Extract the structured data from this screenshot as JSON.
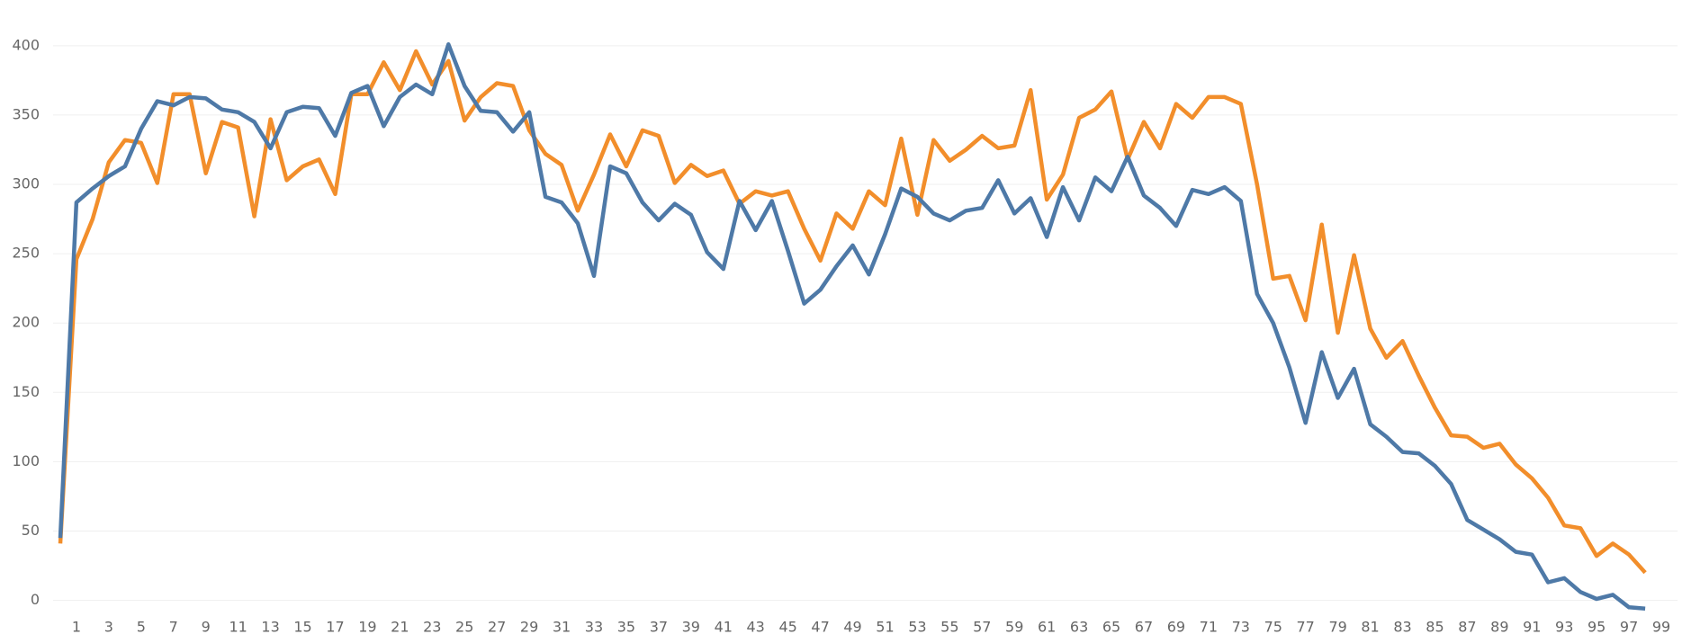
{
  "chart_data": {
    "type": "line",
    "x": [
      0,
      1,
      2,
      3,
      4,
      5,
      6,
      7,
      8,
      9,
      10,
      11,
      12,
      13,
      14,
      15,
      16,
      17,
      18,
      19,
      20,
      21,
      22,
      23,
      24,
      25,
      26,
      27,
      28,
      29,
      30,
      31,
      32,
      33,
      34,
      35,
      36,
      37,
      38,
      39,
      40,
      41,
      42,
      43,
      44,
      45,
      46,
      47,
      48,
      49,
      50,
      51,
      52,
      53,
      54,
      55,
      56,
      57,
      58,
      59,
      60,
      61,
      62,
      63,
      64,
      65,
      66,
      67,
      68,
      69,
      70,
      71,
      72,
      73,
      74,
      75,
      76,
      77,
      78,
      79,
      80,
      81,
      82,
      83,
      84,
      85,
      86,
      87,
      88,
      89,
      90,
      91,
      92,
      93,
      94,
      95,
      96,
      97,
      98
    ],
    "series": [
      {
        "color": "#4e79a7",
        "values": [
          45,
          287,
          297,
          306,
          313,
          340,
          360,
          357,
          363,
          362,
          354,
          352,
          345,
          326,
          352,
          356,
          355,
          335,
          366,
          371,
          342,
          363,
          372,
          365,
          401,
          371,
          353,
          352,
          338,
          352,
          291,
          287,
          272,
          234,
          313,
          308,
          287,
          274,
          286,
          278,
          251,
          239,
          288,
          267,
          288,
          252,
          214,
          224,
          241,
          256,
          235,
          264,
          297,
          291,
          279,
          274,
          281,
          283,
          303,
          279,
          290,
          262,
          298,
          274,
          305,
          295,
          320,
          292,
          283,
          270,
          296,
          293,
          298,
          288,
          221,
          200,
          168,
          128,
          179,
          146,
          167,
          127,
          118,
          107,
          106,
          97,
          84,
          58,
          51,
          44,
          35,
          33,
          13,
          16,
          6,
          1,
          4,
          -5,
          -6
        ]
      },
      {
        "color": "#f28e2b",
        "values": [
          41,
          246,
          275,
          316,
          332,
          330,
          301,
          365,
          365,
          308,
          345,
          341,
          277,
          347,
          303,
          313,
          318,
          293,
          365,
          365,
          388,
          368,
          396,
          372,
          389,
          346,
          363,
          373,
          371,
          339,
          322,
          314,
          281,
          307,
          336,
          313,
          339,
          335,
          301,
          314,
          306,
          310,
          286,
          295,
          292,
          295,
          268,
          245,
          279,
          268,
          295,
          285,
          333,
          278,
          332,
          317,
          325,
          335,
          326,
          328,
          368,
          289,
          307,
          348,
          354,
          367,
          318,
          345,
          326,
          358,
          348,
          363,
          363,
          358,
          300,
          232,
          234,
          202,
          271,
          193,
          249,
          196,
          175,
          187,
          162,
          139,
          119,
          118,
          110,
          113,
          98,
          88,
          74,
          54,
          52,
          32,
          41,
          33,
          20
        ]
      }
    ],
    "xlim": [
      -1,
      100
    ],
    "xticks": [
      1,
      3,
      5,
      7,
      9,
      11,
      13,
      15,
      17,
      19,
      21,
      23,
      25,
      27,
      29,
      31,
      33,
      35,
      37,
      39,
      41,
      43,
      45,
      47,
      49,
      51,
      53,
      55,
      57,
      59,
      61,
      63,
      65,
      67,
      69,
      71,
      73,
      75,
      77,
      79,
      81,
      83,
      85,
      87,
      89,
      91,
      93,
      95,
      97,
      99
    ],
    "ylim": [
      -10,
      420
    ],
    "yticks": [
      0,
      50,
      100,
      150,
      200,
      250,
      300,
      350,
      400
    ],
    "grid": true
  }
}
